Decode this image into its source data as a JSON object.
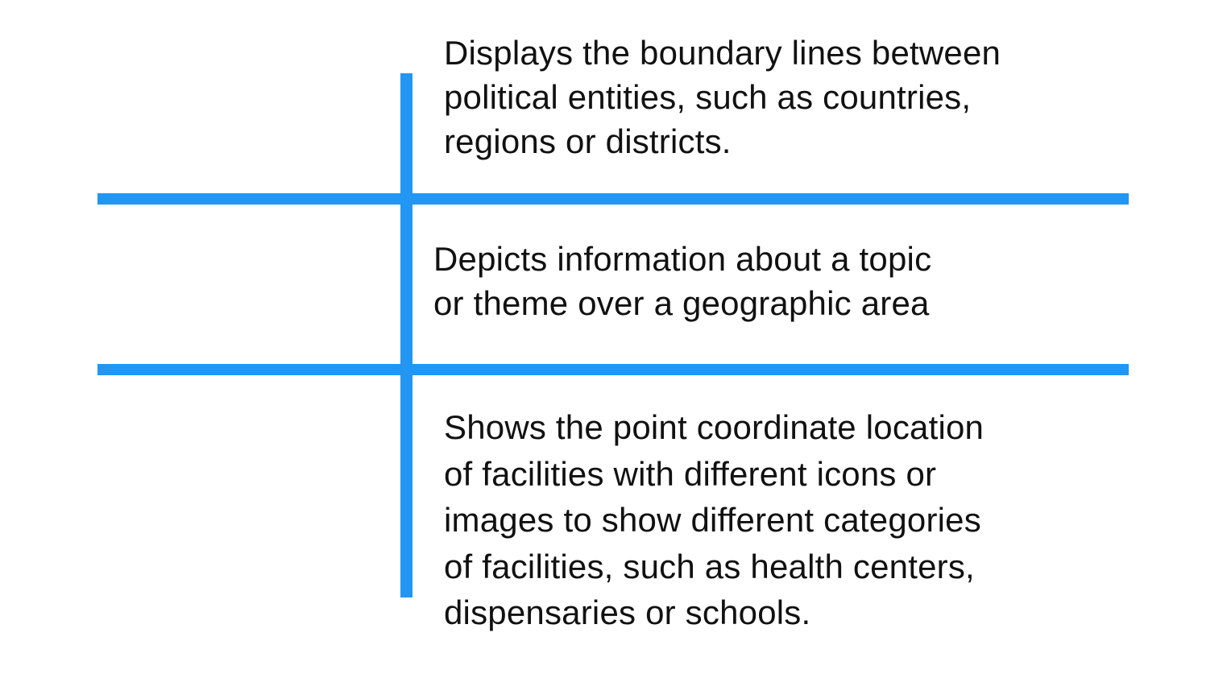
{
  "rows": [
    {
      "lines": [
        "Displays the boundary lines between",
        "political entities, such as countries,",
        "regions or districts."
      ]
    },
    {
      "lines": [
        "Depicts information about a topic",
        "or theme over a geographic area"
      ]
    },
    {
      "lines": [
        "Shows the point coordinate location",
        "of facilities with different icons or",
        "images to show different categories",
        "of facilities, such as health centers,",
        "dispensaries or schools."
      ]
    }
  ],
  "colors": {
    "divider": "#2196f3",
    "text": "#111111",
    "background": "#ffffff"
  }
}
